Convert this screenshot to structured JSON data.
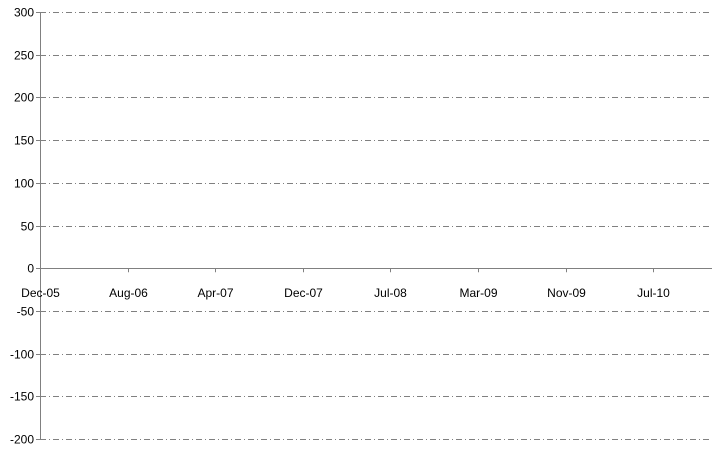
{
  "chart_data": {
    "type": "line",
    "title": "",
    "xlabel": "",
    "ylabel": "",
    "ylim": [
      -200,
      300
    ],
    "yticks": [
      300,
      250,
      200,
      150,
      100,
      50,
      0,
      -50,
      -100,
      -150,
      -200
    ],
    "xtick_labels": [
      "Dec-05",
      "Aug-06",
      "Apr-07",
      "Dec-07",
      "Jul-08",
      "Mar-09",
      "Nov-09",
      "Jul-10"
    ],
    "grid": true,
    "series": []
  }
}
